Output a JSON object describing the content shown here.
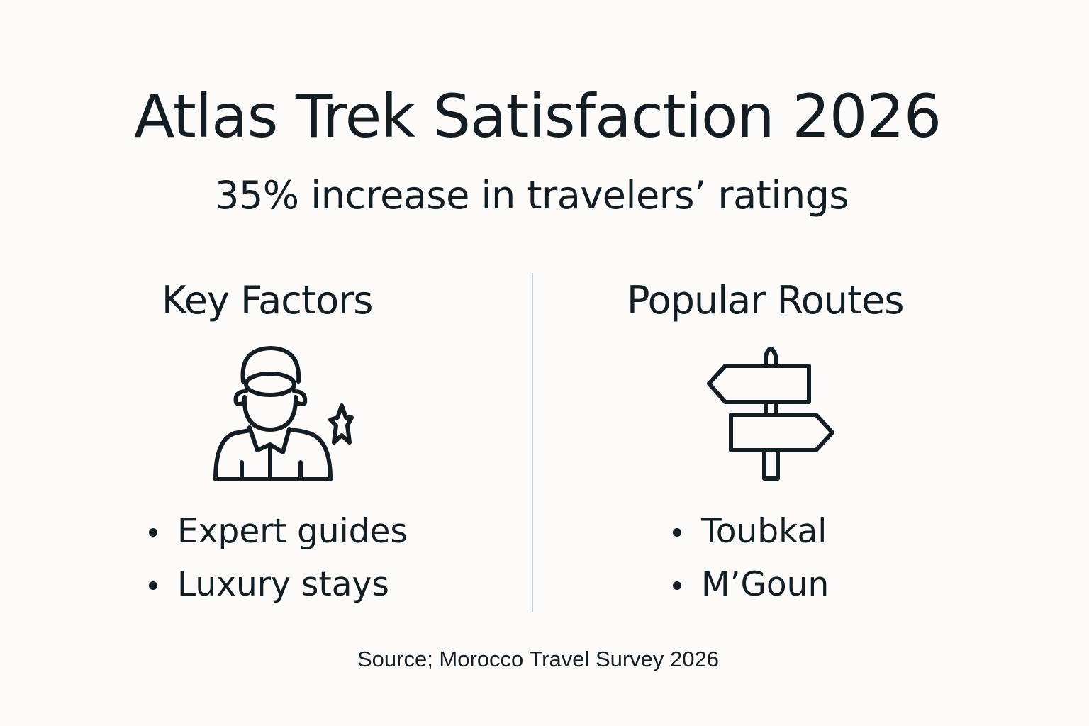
{
  "title": "Atlas Trek Satisfaction 2026",
  "subtitle": "35% increase in travelers’ ratings",
  "left_panel": {
    "heading": "Key Factors",
    "icon": "guide-with-star-icon",
    "items": [
      "Expert guides",
      "Luxury stays"
    ]
  },
  "right_panel": {
    "heading": "Popular Routes",
    "icon": "signpost-icon",
    "items": [
      "Toubkal",
      "M’Goun"
    ]
  },
  "source": "Source; Morocco Travel Survey 2026",
  "colors": {
    "background": "#fcfbf9",
    "text": "#141d22",
    "divider": "#c7ccd1"
  }
}
